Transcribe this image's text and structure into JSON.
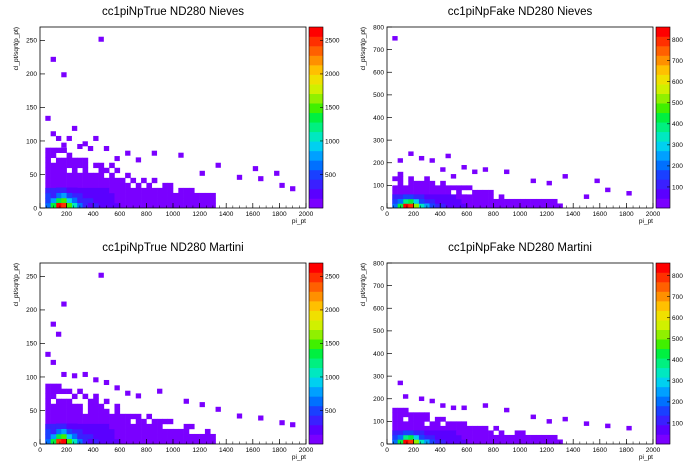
{
  "chart_data": [
    {
      "type": "heatmap",
      "title": "cc1piNpTrue ND280 Nieves",
      "xlabel": "pi_pt",
      "ylabel": "cl_pt/sqrt(p_pt)",
      "xlim": [
        0,
        2000
      ],
      "ylim": [
        0,
        270
      ],
      "xticks": [
        0,
        200,
        400,
        600,
        800,
        1000,
        1200,
        1400,
        1600,
        1800,
        2000
      ],
      "yticks": [
        0,
        50,
        100,
        150,
        200,
        250
      ],
      "zlim": [
        0,
        2700
      ],
      "zticks": [
        500,
        1000,
        1500,
        2000,
        2500
      ],
      "bin_size": [
        40,
        7.5
      ],
      "dense_core": [
        [
          120,
          0,
          2600
        ],
        [
          160,
          0,
          2500
        ],
        [
          80,
          0,
          1300
        ],
        [
          200,
          0,
          1500
        ],
        [
          240,
          0,
          1000
        ],
        [
          280,
          0,
          700
        ],
        [
          120,
          8,
          1400
        ],
        [
          160,
          8,
          1500
        ],
        [
          80,
          8,
          800
        ],
        [
          200,
          8,
          900
        ],
        [
          240,
          8,
          600
        ],
        [
          120,
          15,
          700
        ],
        [
          160,
          15,
          800
        ],
        [
          200,
          15,
          500
        ],
        [
          80,
          15,
          400
        ],
        [
          120,
          23,
          300
        ],
        [
          160,
          23,
          350
        ],
        [
          200,
          23,
          200
        ],
        [
          240,
          23,
          150
        ],
        [
          280,
          8,
          350
        ],
        [
          320,
          0,
          400
        ],
        [
          360,
          0,
          250
        ]
      ],
      "outliers": [
        [
          440,
          248
        ],
        [
          80,
          218
        ],
        [
          160,
          195
        ],
        [
          40,
          130
        ],
        [
          80,
          107
        ],
        [
          240,
          115
        ],
        [
          120,
          100
        ],
        [
          200,
          100
        ],
        [
          320,
          92
        ],
        [
          400,
          100
        ],
        [
          160,
          90
        ],
        [
          280,
          88
        ],
        [
          360,
          85
        ],
        [
          480,
          85
        ],
        [
          640,
          78
        ],
        [
          560,
          70
        ],
        [
          720,
          68
        ],
        [
          840,
          78
        ],
        [
          1040,
          75
        ],
        [
          1320,
          60
        ],
        [
          1600,
          55
        ],
        [
          1760,
          48
        ],
        [
          1200,
          48
        ],
        [
          1480,
          42
        ],
        [
          1640,
          40
        ],
        [
          1800,
          30
        ],
        [
          1880,
          25
        ]
      ]
    },
    {
      "type": "heatmap",
      "title": "cc1piNpFake ND280 Nieves",
      "xlabel": "pi_pt",
      "ylabel": "cl_pt/sqrt(p_pt)",
      "xlim": [
        0,
        2000
      ],
      "ylim": [
        0,
        800
      ],
      "xticks": [
        0,
        200,
        400,
        600,
        800,
        1000,
        1200,
        1400,
        1600,
        1800,
        2000
      ],
      "yticks": [
        0,
        100,
        200,
        300,
        400,
        500,
        600,
        700,
        800
      ],
      "zlim": [
        0,
        860
      ],
      "zticks": [
        100,
        200,
        300,
        400,
        500,
        600,
        700,
        800
      ],
      "bin_size": [
        40,
        20
      ],
      "dense_core": [
        [
          120,
          0,
          820
        ],
        [
          160,
          0,
          800
        ],
        [
          80,
          0,
          450
        ],
        [
          200,
          0,
          500
        ],
        [
          240,
          0,
          350
        ],
        [
          280,
          0,
          250
        ],
        [
          120,
          20,
          400
        ],
        [
          160,
          20,
          450
        ],
        [
          200,
          20,
          280
        ],
        [
          80,
          20,
          200
        ],
        [
          240,
          20,
          150
        ],
        [
          120,
          40,
          150
        ],
        [
          160,
          40,
          180
        ],
        [
          200,
          40,
          100
        ],
        [
          320,
          0,
          150
        ]
      ],
      "outliers": [
        [
          40,
          740
        ],
        [
          160,
          230
        ],
        [
          240,
          210
        ],
        [
          80,
          200
        ],
        [
          320,
          200
        ],
        [
          440,
          220
        ],
        [
          560,
          170
        ],
        [
          640,
          150
        ],
        [
          720,
          160
        ],
        [
          400,
          160
        ],
        [
          480,
          130
        ],
        [
          880,
          150
        ],
        [
          1080,
          110
        ],
        [
          1320,
          130
        ],
        [
          1200,
          100
        ],
        [
          1560,
          110
        ],
        [
          1640,
          70
        ],
        [
          1800,
          55
        ],
        [
          1480,
          40
        ]
      ]
    },
    {
      "type": "heatmap",
      "title": "cc1piNpTrue ND280 Martini",
      "xlabel": "pi_pt",
      "ylabel": "cl_pt/sqrt(p_pt)",
      "xlim": [
        0,
        2000
      ],
      "ylim": [
        0,
        270
      ],
      "xticks": [
        0,
        200,
        400,
        600,
        800,
        1000,
        1200,
        1400,
        1600,
        1800,
        2000
      ],
      "yticks": [
        0,
        50,
        100,
        150,
        200,
        250
      ],
      "zlim": [
        0,
        2700
      ],
      "zticks": [
        500,
        1000,
        1500,
        2000,
        2500
      ],
      "bin_size": [
        40,
        7.5
      ],
      "dense_core": [
        [
          120,
          0,
          2500
        ],
        [
          160,
          0,
          2600
        ],
        [
          80,
          0,
          1300
        ],
        [
          200,
          0,
          1500
        ],
        [
          240,
          0,
          1000
        ],
        [
          280,
          0,
          700
        ],
        [
          120,
          8,
          1300
        ],
        [
          160,
          8,
          1500
        ],
        [
          80,
          8,
          800
        ],
        [
          200,
          8,
          900
        ],
        [
          240,
          8,
          600
        ],
        [
          120,
          15,
          700
        ],
        [
          160,
          15,
          800
        ],
        [
          200,
          15,
          500
        ],
        [
          80,
          15,
          400
        ],
        [
          120,
          23,
          300
        ],
        [
          160,
          23,
          350
        ],
        [
          200,
          23,
          200
        ],
        [
          240,
          23,
          150
        ],
        [
          280,
          8,
          350
        ],
        [
          320,
          0,
          400
        ],
        [
          360,
          0,
          250
        ]
      ],
      "outliers": [
        [
          440,
          248
        ],
        [
          160,
          205
        ],
        [
          80,
          175
        ],
        [
          120,
          160
        ],
        [
          40,
          130
        ],
        [
          80,
          118
        ],
        [
          160,
          100
        ],
        [
          240,
          98
        ],
        [
          320,
          100
        ],
        [
          400,
          92
        ],
        [
          480,
          88
        ],
        [
          560,
          80
        ],
        [
          640,
          72
        ],
        [
          720,
          68
        ],
        [
          880,
          75
        ],
        [
          1080,
          60
        ],
        [
          1200,
          55
        ],
        [
          1320,
          48
        ],
        [
          1480,
          38
        ],
        [
          1640,
          35
        ],
        [
          1800,
          28
        ],
        [
          1880,
          25
        ]
      ]
    },
    {
      "type": "heatmap",
      "title": "cc1piNpFake ND280 Martini",
      "xlabel": "pi_pt",
      "ylabel": "cl_pt/sqrt(p_pt)",
      "xlim": [
        0,
        2000
      ],
      "ylim": [
        0,
        800
      ],
      "xticks": [
        0,
        200,
        400,
        600,
        800,
        1000,
        1200,
        1400,
        1600,
        1800,
        2000
      ],
      "yticks": [
        0,
        100,
        200,
        300,
        400,
        500,
        600,
        700,
        800
      ],
      "zlim": [
        0,
        860
      ],
      "zticks": [
        100,
        200,
        300,
        400,
        500,
        600,
        700,
        800
      ],
      "bin_size": [
        40,
        20
      ],
      "dense_core": [
        [
          120,
          0,
          820
        ],
        [
          160,
          0,
          800
        ],
        [
          80,
          0,
          450
        ],
        [
          200,
          0,
          500
        ],
        [
          240,
          0,
          350
        ],
        [
          280,
          0,
          250
        ],
        [
          120,
          20,
          400
        ],
        [
          160,
          20,
          450
        ],
        [
          200,
          20,
          280
        ],
        [
          80,
          20,
          200
        ],
        [
          240,
          20,
          150
        ],
        [
          120,
          40,
          150
        ],
        [
          160,
          40,
          180
        ],
        [
          200,
          40,
          100
        ],
        [
          320,
          0,
          150
        ]
      ],
      "outliers": [
        [
          40,
          800
        ],
        [
          80,
          260
        ],
        [
          120,
          200
        ],
        [
          240,
          190
        ],
        [
          320,
          180
        ],
        [
          400,
          160
        ],
        [
          480,
          150
        ],
        [
          560,
          150
        ],
        [
          720,
          160
        ],
        [
          880,
          140
        ],
        [
          1080,
          110
        ],
        [
          1200,
          90
        ],
        [
          1320,
          100
        ],
        [
          1480,
          80
        ],
        [
          1640,
          70
        ],
        [
          1800,
          60
        ]
      ]
    }
  ]
}
